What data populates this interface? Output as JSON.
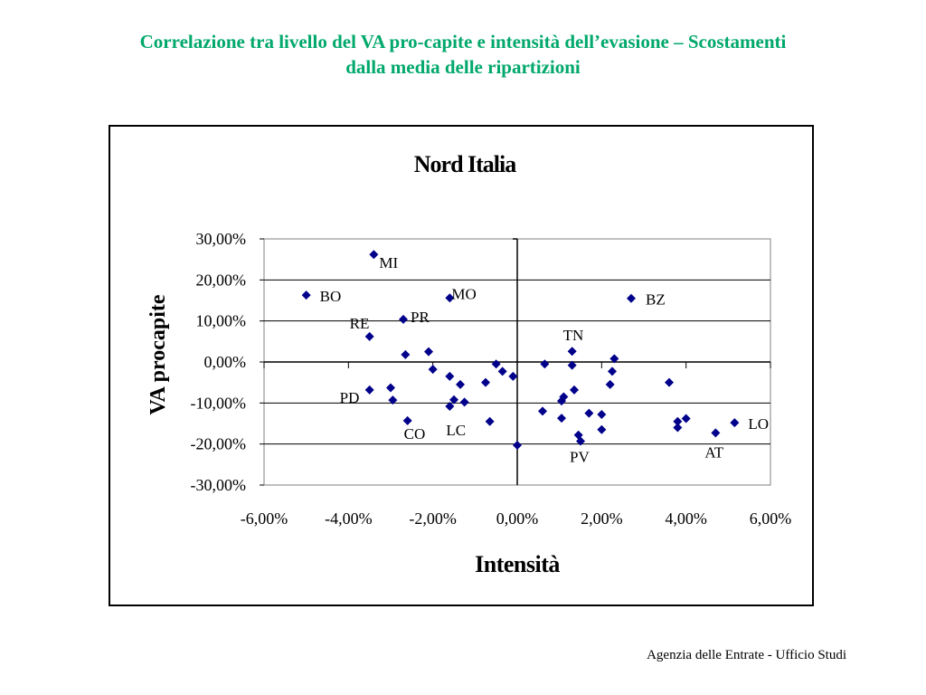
{
  "title": {
    "line1": "Correlazione tra livello del VA pro-capite e intensità dell’evasione – Scostamenti",
    "line2": "dalla media delle ripartizioni",
    "color": "#00a86b"
  },
  "footer": "Agenzia delle Entrate - Ufficio Studi",
  "chart_data": {
    "type": "scatter",
    "title": "Nord Italia",
    "xlabel": "Intensità",
    "ylabel": "VA  procapite",
    "xlim": [
      -0.06,
      0.06
    ],
    "ylim": [
      -0.3,
      0.3
    ],
    "x_ticks": [
      "-6,00%",
      "-4,00%",
      "-2,00%",
      "0,00%",
      "2,00%",
      "4,00%",
      "6,00%"
    ],
    "y_ticks": [
      "30,00%",
      "20,00%",
      "10,00%",
      "0,00%",
      "-10,00%",
      "-20,00%",
      "-30,00%"
    ],
    "grid": "horizontal",
    "marker_color": "#00008b",
    "series": [
      {
        "points": [
          {
            "x": -0.034,
            "y": 0.262,
            "label": "MI"
          },
          {
            "x": -0.05,
            "y": 0.163,
            "label": "BO"
          },
          {
            "x": -0.016,
            "y": 0.156,
            "label": "MO"
          },
          {
            "x": -0.027,
            "y": 0.104,
            "label": "PR"
          },
          {
            "x": -0.035,
            "y": 0.062,
            "label": "RE"
          },
          {
            "x": -0.0265,
            "y": 0.018
          },
          {
            "x": -0.021,
            "y": 0.025
          },
          {
            "x": -0.02,
            "y": -0.018
          },
          {
            "x": -0.016,
            "y": -0.035
          },
          {
            "x": -0.0135,
            "y": -0.055
          },
          {
            "x": -0.035,
            "y": -0.068,
            "label": "PD"
          },
          {
            "x": -0.03,
            "y": -0.063
          },
          {
            "x": -0.0295,
            "y": -0.093
          },
          {
            "x": -0.026,
            "y": -0.143,
            "label": "CO"
          },
          {
            "x": -0.015,
            "y": -0.092
          },
          {
            "x": -0.0125,
            "y": -0.098
          },
          {
            "x": -0.016,
            "y": -0.108,
            "label": "LC"
          },
          {
            "x": -0.0075,
            "y": -0.05
          },
          {
            "x": -0.005,
            "y": -0.005
          },
          {
            "x": -0.0035,
            "y": -0.023
          },
          {
            "x": -0.001,
            "y": -0.035
          },
          {
            "x": -0.0065,
            "y": -0.145
          },
          {
            "x": 0.0,
            "y": -0.203
          },
          {
            "x": 0.027,
            "y": 0.155,
            "label": "BZ"
          },
          {
            "x": 0.013,
            "y": 0.026,
            "label": "TN"
          },
          {
            "x": 0.0065,
            "y": -0.005
          },
          {
            "x": 0.013,
            "y": -0.008
          },
          {
            "x": 0.023,
            "y": 0.008
          },
          {
            "x": 0.0225,
            "y": -0.023
          },
          {
            "x": 0.022,
            "y": -0.055
          },
          {
            "x": 0.0135,
            "y": -0.068
          },
          {
            "x": 0.011,
            "y": -0.085
          },
          {
            "x": 0.0105,
            "y": -0.095
          },
          {
            "x": 0.006,
            "y": -0.12
          },
          {
            "x": 0.0105,
            "y": -0.137
          },
          {
            "x": 0.017,
            "y": -0.125
          },
          {
            "x": 0.02,
            "y": -0.128
          },
          {
            "x": 0.02,
            "y": -0.165
          },
          {
            "x": 0.0145,
            "y": -0.178
          },
          {
            "x": 0.015,
            "y": -0.193,
            "label": "PV"
          },
          {
            "x": 0.036,
            "y": -0.05
          },
          {
            "x": 0.038,
            "y": -0.145
          },
          {
            "x": 0.04,
            "y": -0.138
          },
          {
            "x": 0.038,
            "y": -0.16
          },
          {
            "x": 0.047,
            "y": -0.173,
            "label": "AT"
          },
          {
            "x": 0.0515,
            "y": -0.148,
            "label": "LO"
          }
        ]
      }
    ]
  }
}
